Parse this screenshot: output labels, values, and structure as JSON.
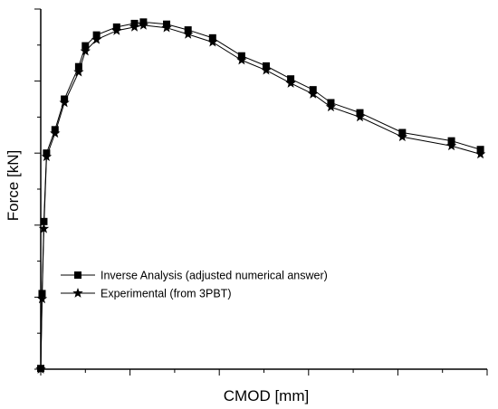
{
  "chart_data": {
    "type": "line",
    "title": "",
    "xlabel": "CMOD [mm]",
    "ylabel": "Force [kN]",
    "x_tick_labels": "none",
    "y_tick_labels": "none",
    "xlim": [
      0,
      10
    ],
    "ylim": [
      0,
      10
    ],
    "grid": false,
    "legend_position": "lower-left",
    "series": [
      {
        "name": "Inverse Analysis (adjusted numerical answer)",
        "marker": "square",
        "color": "#000000",
        "x": [
          0,
          0.03,
          0.07,
          0.13,
          0.32,
          0.53,
          0.85,
          1.0,
          1.25,
          1.7,
          2.1,
          2.3,
          2.82,
          3.3,
          3.85,
          4.5,
          5.05,
          5.6,
          6.1,
          6.5,
          7.15,
          8.1,
          9.2,
          9.85
        ],
        "y": [
          0.02,
          2.1,
          4.1,
          6.0,
          6.65,
          7.5,
          8.4,
          8.98,
          9.28,
          9.5,
          9.6,
          9.64,
          9.58,
          9.42,
          9.2,
          8.7,
          8.42,
          8.06,
          7.76,
          7.4,
          7.12,
          6.57,
          6.34,
          6.1
        ]
      },
      {
        "name": "Experimental (from 3PBT)",
        "marker": "star",
        "color": "#000000",
        "x": [
          0,
          0.03,
          0.07,
          0.13,
          0.32,
          0.53,
          0.85,
          1.0,
          1.25,
          1.7,
          2.1,
          2.3,
          2.82,
          3.3,
          3.85,
          4.5,
          5.05,
          5.6,
          6.1,
          6.5,
          7.15,
          8.1,
          9.2,
          9.85
        ],
        "y": [
          0.0,
          1.95,
          3.9,
          5.9,
          6.55,
          7.4,
          8.25,
          8.83,
          9.15,
          9.4,
          9.5,
          9.55,
          9.48,
          9.3,
          9.08,
          8.58,
          8.3,
          7.94,
          7.64,
          7.28,
          7.0,
          6.45,
          6.2,
          5.97
        ]
      }
    ]
  }
}
